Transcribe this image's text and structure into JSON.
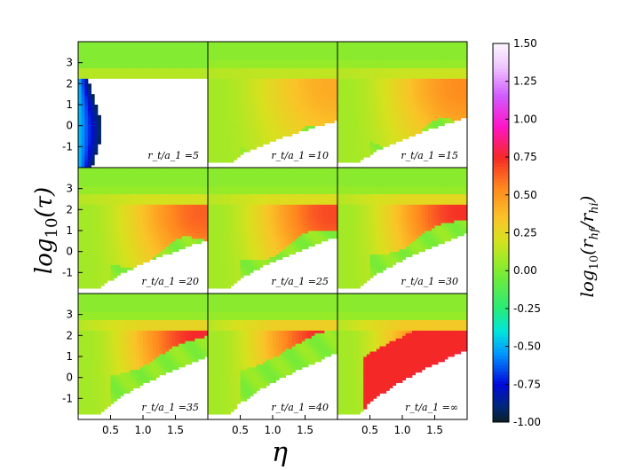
{
  "chart_data": {
    "type": "heatmap",
    "layout": "3x3 grid of panels",
    "xlabel": "η",
    "ylabel": "log10(τ)",
    "xlim": [
      0.0,
      2.0
    ],
    "ylim": [
      -2.0,
      4.0
    ],
    "x_ticks": [
      "0.5",
      "1.0",
      "1.5"
    ],
    "y_ticks": [
      "-1",
      "0",
      "1",
      "2",
      "3"
    ],
    "colorbar": {
      "label": "log10(r_hf / r_hi)",
      "range": [
        -1.0,
        1.5
      ],
      "ticks": [
        "1.50",
        "1.25",
        "1.00",
        "0.75",
        "0.50",
        "0.25",
        "0.00",
        "-0.25",
        "-0.50",
        "-0.75",
        "-1.00"
      ]
    },
    "panels": [
      {
        "label": "r_t/a_1 =5",
        "rt": "5",
        "inner": 0.85,
        "outer": 0.0,
        "below_v": 0.3
      },
      {
        "label": "r_t/a_1 =10",
        "rt": "10",
        "inner": 0.35,
        "outer": 0.05,
        "below_v": 0.1
      },
      {
        "label": "r_t/a_1 =15",
        "rt": "15",
        "inner": 0.45,
        "outer": 0.05,
        "below_v": 0.05
      },
      {
        "label": "r_t/a_1 =20",
        "rt": "20",
        "inner": 0.55,
        "outer": 0.05,
        "below_v": 0.05
      },
      {
        "label": "r_t/a_1 =25",
        "rt": "25",
        "inner": 0.6,
        "outer": 0.05,
        "below_v": 0.05
      },
      {
        "label": "r_t/a_1 =30",
        "rt": "30",
        "inner": 0.65,
        "outer": 0.05,
        "below_v": 0.05
      },
      {
        "label": "r_t/a_1 =35",
        "rt": "35",
        "inner": 0.68,
        "outer": 0.05,
        "below_v": 0.05
      },
      {
        "label": "r_t/a_1 =40",
        "rt": "40",
        "inner": 0.7,
        "outer": 0.05,
        "below_v": 0.05
      },
      {
        "label": "r_t/a_1 =∞",
        "rt": "∞",
        "inner": 0.72,
        "outer": 0.05,
        "below_v": 0.05
      }
    ]
  }
}
